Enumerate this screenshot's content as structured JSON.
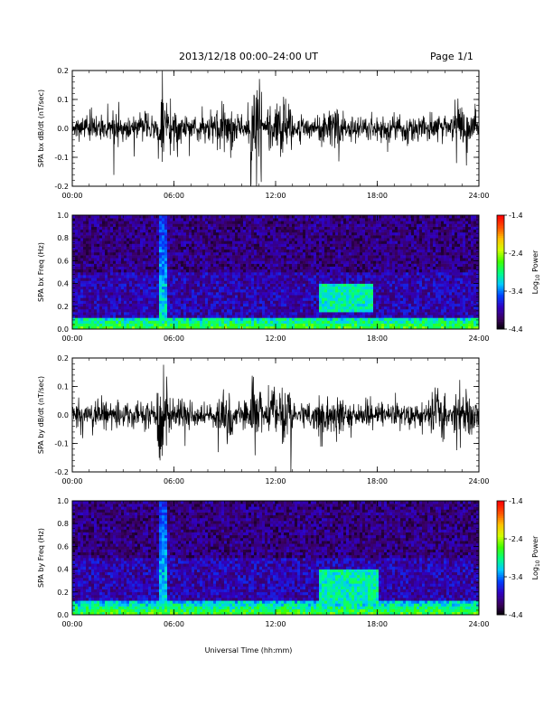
{
  "header": {
    "title": "2013/12/18   00:00–24:00 UT",
    "page": "Page 1/1"
  },
  "x_axis": {
    "label": "Universal Time (hh:mm)",
    "ticks": [
      "00:00",
      "06:00",
      "12:00",
      "18:00",
      "24:00"
    ],
    "range_hours": [
      0,
      24
    ]
  },
  "colorbar": {
    "label_prefix": "Log",
    "label_sub": "10",
    "label_suffix": " Power",
    "ticks": [
      "-1.4",
      "-2.4",
      "-3.4",
      "-4.4"
    ],
    "range": [
      -4.4,
      -1.4
    ],
    "colors": [
      "#000000",
      "#3a0060",
      "#3000c0",
      "#0040ff",
      "#00c8ff",
      "#00ff80",
      "#40ff00",
      "#d0ff00",
      "#ffc000",
      "#ff5000",
      "#ff0000"
    ]
  },
  "chart_data": [
    {
      "type": "line",
      "ylabel": "SPA bx dB/dt (nT/sec)",
      "ylim": [
        -0.2,
        0.2
      ],
      "yticks": [
        "0.2",
        "0.1",
        "0.0",
        "-0.1",
        "-0.2"
      ],
      "x_range": [
        0,
        24
      ],
      "activity": [
        {
          "start": 0.3,
          "end": 1.5,
          "amplitude": 0.06
        },
        {
          "start": 1.5,
          "end": 4.8,
          "amplitude": 0.03
        },
        {
          "start": 5.0,
          "end": 5.4,
          "amplitude": 0.2
        },
        {
          "start": 5.4,
          "end": 6.5,
          "amplitude": 0.1
        },
        {
          "start": 8.5,
          "end": 9.5,
          "amplitude": 0.12
        },
        {
          "start": 10.5,
          "end": 11.2,
          "amplitude": 0.2
        },
        {
          "start": 11.5,
          "end": 13.0,
          "amplitude": 0.12
        },
        {
          "start": 14.5,
          "end": 16.0,
          "amplitude": 0.09
        },
        {
          "start": 22.5,
          "end": 23.9,
          "amplitude": 0.1
        }
      ],
      "baseline_amplitude": 0.06
    },
    {
      "type": "heatmap",
      "ylabel": "SPA bx Freq (Hz)",
      "ylim": [
        0.0,
        1.0
      ],
      "yticks": [
        "1.0",
        "0.8",
        "0.6",
        "0.4",
        "0.2",
        "0.0"
      ],
      "x_range": [
        0,
        24
      ],
      "value_range": [
        -4.4,
        -1.4
      ],
      "features": [
        {
          "kind": "low_band",
          "freq_max": 0.1,
          "level": -2.6
        },
        {
          "kind": "broadband",
          "start": 5.2,
          "end": 5.6,
          "freq_max": 1.0,
          "level": -3.0
        },
        {
          "kind": "patch",
          "start": 14.5,
          "end": 17.8,
          "freq_min": 0.15,
          "freq_max": 0.4,
          "level": -3.0
        }
      ]
    },
    {
      "type": "line",
      "ylabel": "SPA by dB/dt (nT/sec)",
      "ylim": [
        -0.2,
        0.2
      ],
      "yticks": [
        "0.2",
        "0.1",
        "0.0",
        "-0.1",
        "-0.2"
      ],
      "x_range": [
        0,
        24
      ],
      "activity": [
        {
          "start": 0.3,
          "end": 1.5,
          "amplitude": 0.06
        },
        {
          "start": 1.5,
          "end": 4.8,
          "amplitude": 0.035
        },
        {
          "start": 5.0,
          "end": 5.4,
          "amplitude": 0.2
        },
        {
          "start": 5.4,
          "end": 6.5,
          "amplitude": 0.1
        },
        {
          "start": 8.5,
          "end": 9.5,
          "amplitude": 0.1
        },
        {
          "start": 10.5,
          "end": 11.2,
          "amplitude": 0.2
        },
        {
          "start": 11.5,
          "end": 13.0,
          "amplitude": 0.12
        },
        {
          "start": 14.5,
          "end": 16.0,
          "amplitude": 0.1
        },
        {
          "start": 21.0,
          "end": 22.0,
          "amplitude": 0.1
        },
        {
          "start": 22.5,
          "end": 23.9,
          "amplitude": 0.12
        }
      ],
      "baseline_amplitude": 0.06
    },
    {
      "type": "heatmap",
      "ylabel": "SPA by Freq (Hz)",
      "ylim": [
        0.0,
        1.0
      ],
      "yticks": [
        "1.0",
        "0.8",
        "0.6",
        "0.4",
        "0.2",
        "0.0"
      ],
      "x_range": [
        0,
        24
      ],
      "value_range": [
        -4.4,
        -1.4
      ],
      "features": [
        {
          "kind": "low_band",
          "freq_max": 0.12,
          "level": -2.6
        },
        {
          "kind": "broadband",
          "start": 5.2,
          "end": 5.6,
          "freq_max": 1.0,
          "level": -3.0
        },
        {
          "kind": "patch",
          "start": 14.5,
          "end": 18.0,
          "freq_min": 0.1,
          "freq_max": 0.4,
          "level": -3.0
        }
      ]
    }
  ]
}
